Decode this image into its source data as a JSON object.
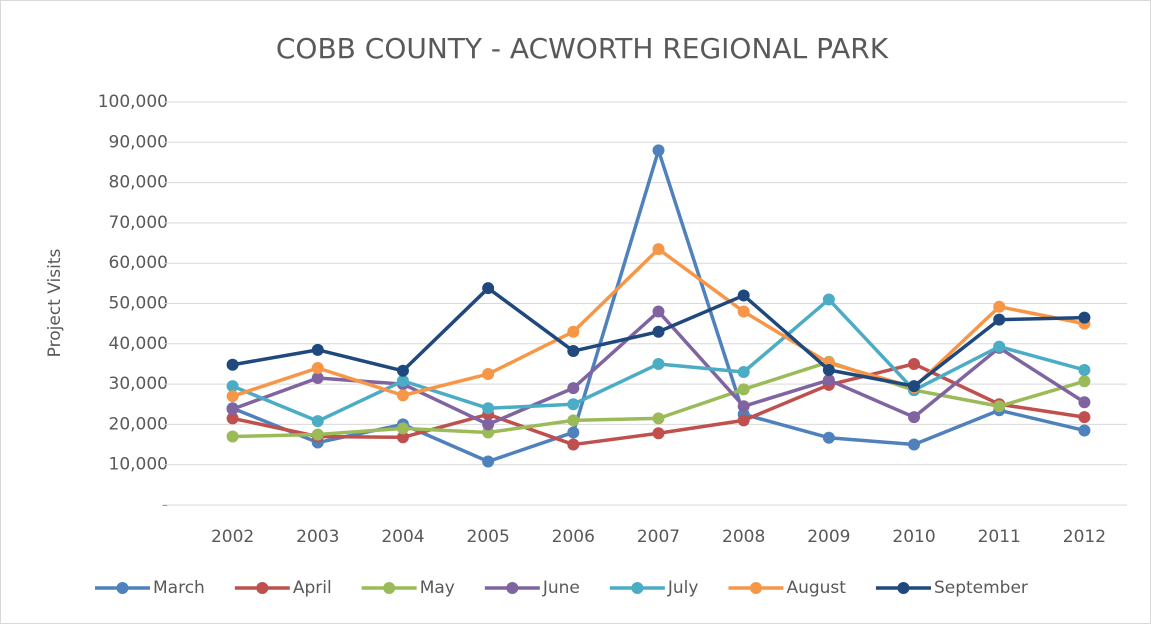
{
  "chart_data": {
    "type": "line",
    "title": "COBB COUNTY - ACWORTH REGIONAL PARK",
    "y_label": "Project Visits",
    "categories": [
      "2002",
      "2003",
      "2004",
      "2005",
      "2006",
      "2007",
      "2008",
      "2009",
      "2010",
      "2011",
      "2012"
    ],
    "series": [
      {
        "name": "March",
        "color": "#4f81bd",
        "values": [
          24000,
          15500,
          20000,
          10800,
          18000,
          88000,
          22500,
          16700,
          15000,
          23500,
          18500
        ]
      },
      {
        "name": "April",
        "color": "#c0504d",
        "values": [
          21500,
          17000,
          16800,
          22500,
          15000,
          17800,
          21000,
          29800,
          35000,
          25000,
          21800
        ]
      },
      {
        "name": "May",
        "color": "#9bbb59",
        "values": [
          17000,
          17500,
          19000,
          18000,
          21000,
          21500,
          28700,
          35500,
          28500,
          24500,
          30700
        ]
      },
      {
        "name": "June",
        "color": "#8064a2",
        "values": [
          23800,
          31500,
          30000,
          20000,
          29000,
          48000,
          24500,
          31000,
          21800,
          39000,
          25500
        ]
      },
      {
        "name": "July",
        "color": "#4bacc6",
        "values": [
          29500,
          20800,
          30800,
          24000,
          25000,
          35000,
          33000,
          51000,
          28500,
          39300,
          33500
        ]
      },
      {
        "name": "August",
        "color": "#f79646",
        "values": [
          27000,
          34000,
          27200,
          32500,
          43000,
          63500,
          48000,
          35200,
          29200,
          49200,
          45000
        ]
      },
      {
        "name": "September",
        "color": "#1f497d",
        "values": [
          34800,
          38500,
          33300,
          53800,
          38200,
          43000,
          52000,
          33500,
          29500,
          46000,
          46500
        ]
      }
    ],
    "ylim": [
      0,
      100000
    ],
    "yticks": [
      {
        "value": 0,
        "label": "-"
      },
      {
        "value": 10000,
        "label": "10,000"
      },
      {
        "value": 20000,
        "label": "20,000"
      },
      {
        "value": 30000,
        "label": "30,000"
      },
      {
        "value": 40000,
        "label": "40,000"
      },
      {
        "value": 50000,
        "label": "50,000"
      },
      {
        "value": 60000,
        "label": "60,000"
      },
      {
        "value": 70000,
        "label": "70,000"
      },
      {
        "value": 80000,
        "label": "80,000"
      },
      {
        "value": 90000,
        "label": "90,000"
      },
      {
        "value": 100000,
        "label": "100,000"
      }
    ],
    "grid": true,
    "legend": "bottom"
  }
}
